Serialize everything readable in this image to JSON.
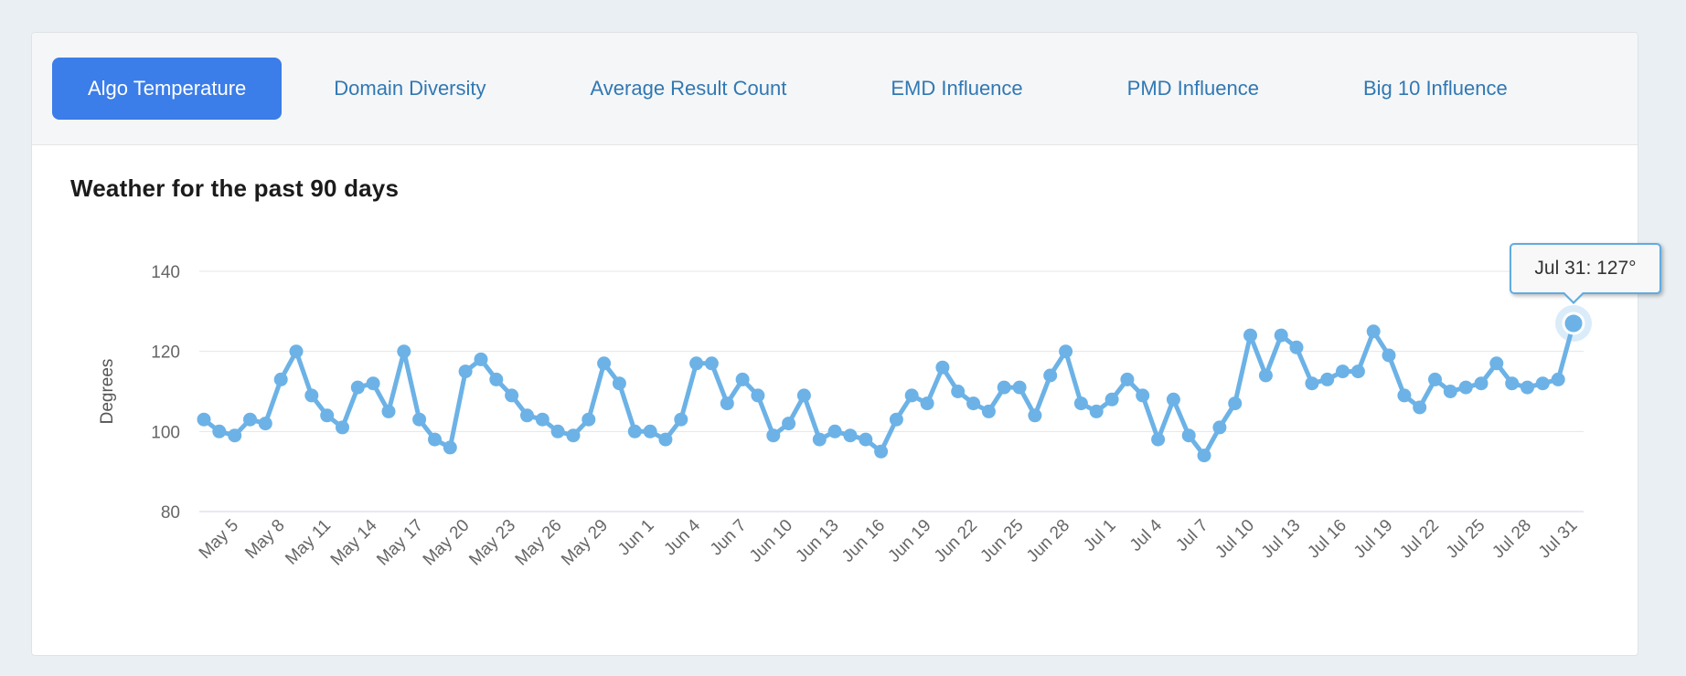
{
  "tabs": {
    "items": [
      {
        "label": "Algo Temperature",
        "active": true
      },
      {
        "label": "Domain Diversity",
        "active": false
      },
      {
        "label": "Average Result Count",
        "active": false
      },
      {
        "label": "EMD Influence",
        "active": false
      },
      {
        "label": "PMD Influence",
        "active": false
      },
      {
        "label": "Big 10 Influence",
        "active": false
      }
    ]
  },
  "colors": {
    "active_tab_bg": "#3b7de9",
    "active_tab_text": "#ffffff",
    "tab_text": "#3078b4",
    "series": "#6cb2e6",
    "grid": "#e6e6e6",
    "axis_line": "#ccd6eb",
    "tick_label": "#666666",
    "tooltip_bg": "#f8f8f8",
    "tooltip_text": "#333333"
  },
  "chart_data": {
    "type": "line",
    "title": "Weather for the past 90 days",
    "xlabel": "",
    "ylabel": "Degrees",
    "ylim": [
      80,
      140
    ],
    "y_ticks": [
      80,
      100,
      120,
      140
    ],
    "grid": true,
    "legend": "none",
    "marker": "circle",
    "categories": [
      "May 3",
      "May 4",
      "May 5",
      "May 6",
      "May 7",
      "May 8",
      "May 9",
      "May 10",
      "May 11",
      "May 12",
      "May 13",
      "May 14",
      "May 15",
      "May 16",
      "May 17",
      "May 18",
      "May 19",
      "May 20",
      "May 21",
      "May 22",
      "May 23",
      "May 24",
      "May 25",
      "May 26",
      "May 27",
      "May 28",
      "May 29",
      "May 30",
      "May 31",
      "Jun 1",
      "Jun 2",
      "Jun 3",
      "Jun 4",
      "Jun 5",
      "Jun 6",
      "Jun 7",
      "Jun 8",
      "Jun 9",
      "Jun 10",
      "Jun 11",
      "Jun 12",
      "Jun 13",
      "Jun 14",
      "Jun 15",
      "Jun 16",
      "Jun 17",
      "Jun 18",
      "Jun 19",
      "Jun 20",
      "Jun 21",
      "Jun 22",
      "Jun 23",
      "Jun 24",
      "Jun 25",
      "Jun 26",
      "Jun 27",
      "Jun 28",
      "Jun 29",
      "Jun 30",
      "Jul 1",
      "Jul 2",
      "Jul 3",
      "Jul 4",
      "Jul 5",
      "Jul 6",
      "Jul 7",
      "Jul 8",
      "Jul 9",
      "Jul 10",
      "Jul 11",
      "Jul 12",
      "Jul 13",
      "Jul 14",
      "Jul 15",
      "Jul 16",
      "Jul 17",
      "Jul 18",
      "Jul 19",
      "Jul 20",
      "Jul 21",
      "Jul 22",
      "Jul 23",
      "Jul 24",
      "Jul 25",
      "Jul 26",
      "Jul 27",
      "Jul 28",
      "Jul 29",
      "Jul 30",
      "Jul 31"
    ],
    "values": [
      103,
      100,
      99,
      103,
      102,
      113,
      120,
      109,
      104,
      101,
      111,
      112,
      105,
      120,
      103,
      98,
      96,
      115,
      118,
      113,
      109,
      104,
      103,
      100,
      99,
      103,
      117,
      112,
      100,
      100,
      98,
      103,
      117,
      117,
      107,
      113,
      109,
      99,
      102,
      109,
      98,
      100,
      99,
      98,
      95,
      103,
      109,
      107,
      116,
      110,
      107,
      105,
      111,
      111,
      104,
      114,
      120,
      107,
      105,
      108,
      113,
      109,
      98,
      108,
      99,
      94,
      101,
      107,
      124,
      114,
      124,
      121,
      112,
      113,
      115,
      115,
      125,
      119,
      109,
      106,
      113,
      110,
      111,
      112,
      117,
      112,
      111,
      112,
      113,
      127
    ],
    "x_tick_labels": [
      "May 5",
      "May 8",
      "May 11",
      "May 14",
      "May 17",
      "May 20",
      "May 23",
      "May 26",
      "May 29",
      "Jun 1",
      "Jun 4",
      "Jun 7",
      "Jun 10",
      "Jun 13",
      "Jun 16",
      "Jun 19",
      "Jun 22",
      "Jun 25",
      "Jun 28",
      "Jul 1",
      "Jul 4",
      "Jul 7",
      "Jul 10",
      "Jul 13",
      "Jul 16",
      "Jul 19",
      "Jul 22",
      "Jul 25",
      "Jul 28",
      "Jul 31"
    ],
    "highlight": {
      "category": "Jul 31",
      "value": 127,
      "tooltip": "Jul 31: 127°"
    }
  }
}
